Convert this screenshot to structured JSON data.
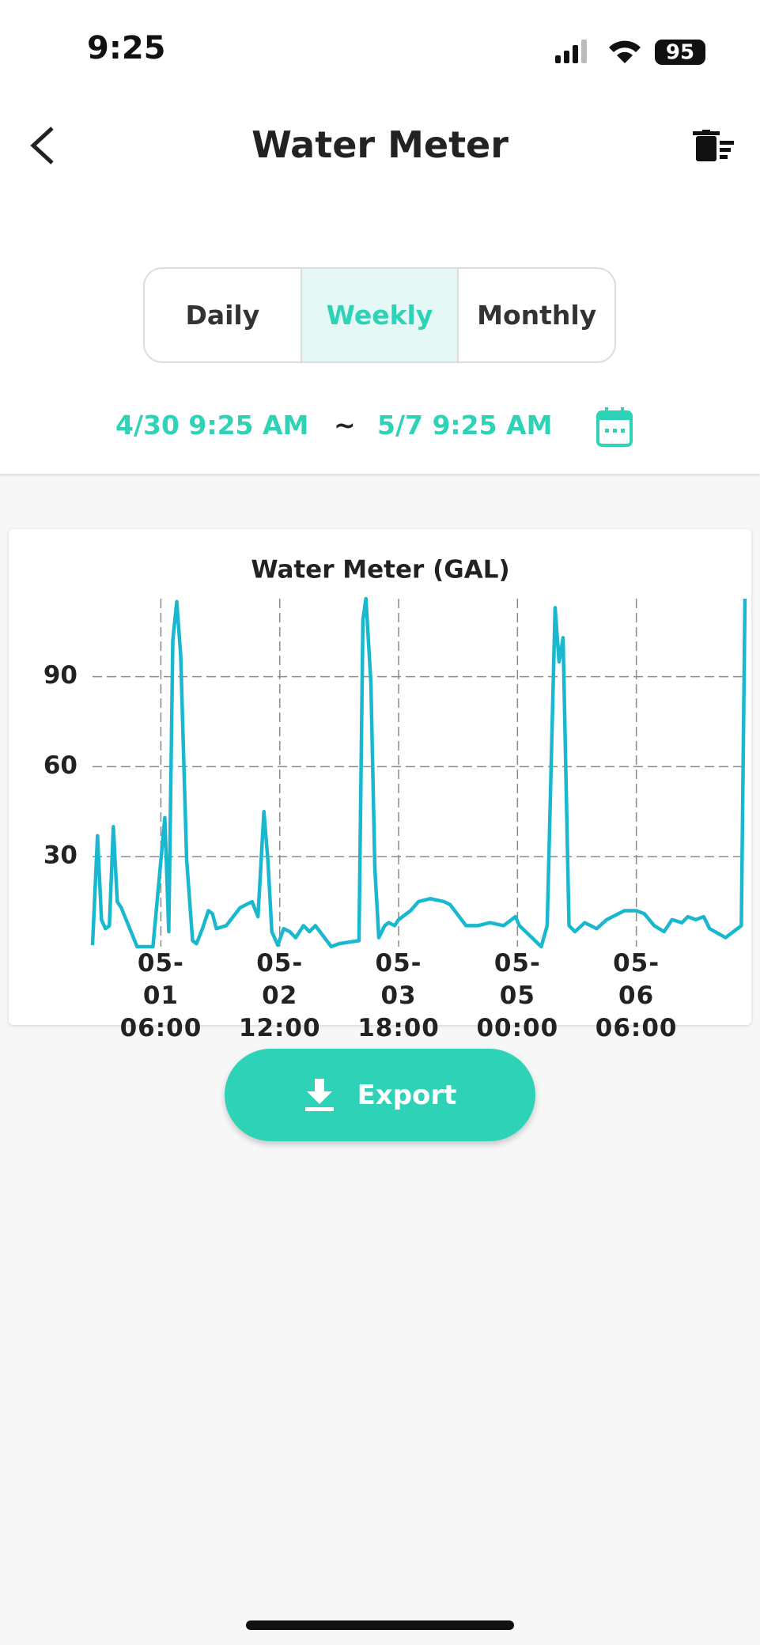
{
  "status_bar": {
    "time": "9:25",
    "battery": "95"
  },
  "header": {
    "title": "Water Meter"
  },
  "tabs": [
    "Daily",
    "Weekly",
    "Monthly"
  ],
  "date_range": {
    "start": "4/30 9:25 AM",
    "separator": "~",
    "end": "5/7 9:25 AM"
  },
  "chart_data": {
    "type": "line",
    "title": "Water Meter (GAL)",
    "color": "#1ab8cf",
    "grid": true,
    "x": [
      "04-30 12:45",
      "04-30 14:00",
      "04-30 15:00",
      "04-30 16:00",
      "04-30 17:00",
      "04-30 18:00",
      "04-30 19:00",
      "04-30 20:00",
      "05-01 00:00",
      "05-01 04:00",
      "05-01 07:00",
      "05-01 08:00",
      "05-01 09:00",
      "05-01 10:00",
      "05-01 11:00",
      "05-01 12:30",
      "05-01 14:00",
      "05-01 15:00",
      "05-01 16:30",
      "05-01 18:00",
      "05-01 19:00",
      "05-01 20:00",
      "05-01 22:30",
      "05-02 02:00",
      "05-02 05:00",
      "05-02 06:30",
      "05-02 08:00",
      "05-02 09:00",
      "05-02 10:00",
      "05-02 11:30",
      "05-02 13:00",
      "05-02 14:30",
      "05-02 16:00",
      "05-02 18:00",
      "05-02 19:30",
      "05-02 21:00",
      "05-03 01:00",
      "05-03 03:00",
      "05-03 08:00",
      "05-03 09:00",
      "05-03 09:45",
      "05-03 11:00",
      "05-03 12:00",
      "05-03 13:00",
      "05-03 14:30",
      "05-03 15:30",
      "05-03 17:00",
      "05-03 18:00",
      "05-03 21:00",
      "05-03 23:00",
      "05-04 02:00",
      "05-04 05:30",
      "05-04 07:00",
      "05-04 11:00",
      "05-04 14:00",
      "05-04 17:00",
      "05-04 20:30",
      "05-04 23:30",
      "05-05 00:30",
      "05-05 06:00",
      "05-05 07:30",
      "05-05 09:30",
      "05-05 10:30",
      "05-05 11:30",
      "05-05 13:00",
      "05-05 14:30",
      "05-05 17:00",
      "05-05 20:00",
      "05-05 22:30",
      "05-06 03:00",
      "05-06 06:00",
      "05-06 08:00",
      "05-06 10:30",
      "05-06 13:00",
      "05-06 15:00",
      "05-06 17:30",
      "05-06 19:00",
      "05-06 21:00",
      "05-06 23:00",
      "05-07 00:30",
      "05-07 04:30",
      "05-07 08:30",
      "05-07 09:25"
    ],
    "values": [
      0.5,
      37,
      9,
      6,
      7,
      40,
      15,
      13,
      0,
      0,
      43,
      5,
      102,
      115,
      97,
      29,
      2,
      1,
      6,
      12,
      11,
      6,
      7,
      13,
      15,
      10,
      45,
      29,
      5,
      0.5,
      6,
      5,
      3,
      7,
      5,
      7,
      0,
      1,
      2,
      109,
      116,
      88,
      26,
      3,
      7,
      8,
      7,
      9,
      12,
      15,
      16,
      15,
      14,
      7,
      7,
      8,
      7,
      10,
      7,
      0,
      7,
      113,
      95,
      103,
      7,
      5,
      8,
      6,
      9,
      12,
      12,
      11,
      7,
      5,
      9,
      8,
      10,
      9,
      10,
      6,
      3,
      7,
      116
    ],
    "xlim": [
      "04-30 12:45",
      "05-07 09:25"
    ],
    "xticks": [
      "05-01 06:00",
      "05-02 12:00",
      "05-03 18:00",
      "05-05 00:00",
      "05-06 06:00"
    ],
    "ylim": [
      0,
      116
    ],
    "yticks": [
      30,
      60,
      90
    ]
  },
  "export_button": {
    "label": "Export"
  }
}
